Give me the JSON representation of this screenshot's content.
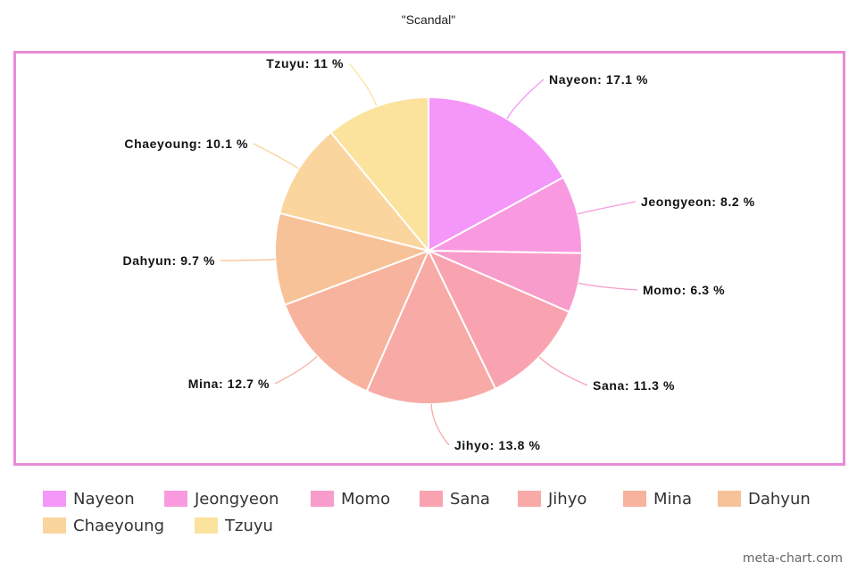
{
  "chart_data": {
    "type": "pie",
    "title": "\"Scandal\"",
    "categories": [
      "Nayeon",
      "Jeongyeon",
      "Momo",
      "Sana",
      "Jihyo",
      "Mina",
      "Dahyun",
      "Chaeyoung",
      "Tzuyu"
    ],
    "values": [
      17.1,
      8.2,
      6.3,
      11.3,
      13.8,
      12.7,
      9.7,
      10.1,
      11
    ],
    "data_labels": [
      "Nayeon: 17.1 %",
      "Jeongyeon: 8.2 %",
      "Momo: 6.3 %",
      "Sana: 11.3 %",
      "Jihyo: 13.8 %",
      "Mina: 12.7 %",
      "Dahyun: 9.7 %",
      "Chaeyoung: 10.1 %",
      "Tzuyu: 11 %"
    ],
    "colors": [
      "#f596f9",
      "#f99ae0",
      "#f89ccb",
      "#f9a3b1",
      "#f8aaa6",
      "#f8b39e",
      "#f8c298",
      "#fad59e",
      "#fbe29d"
    ],
    "legend": {
      "entries": [
        "Nayeon",
        "Jeongyeon",
        "Momo",
        "Sana",
        "Jihyo",
        "Mina",
        "Dahyun",
        "Chaeyoung",
        "Tzuyu"
      ],
      "placement": "bottom"
    },
    "frame_color": "#e98bd6"
  },
  "watermark": "meta-chart.com"
}
